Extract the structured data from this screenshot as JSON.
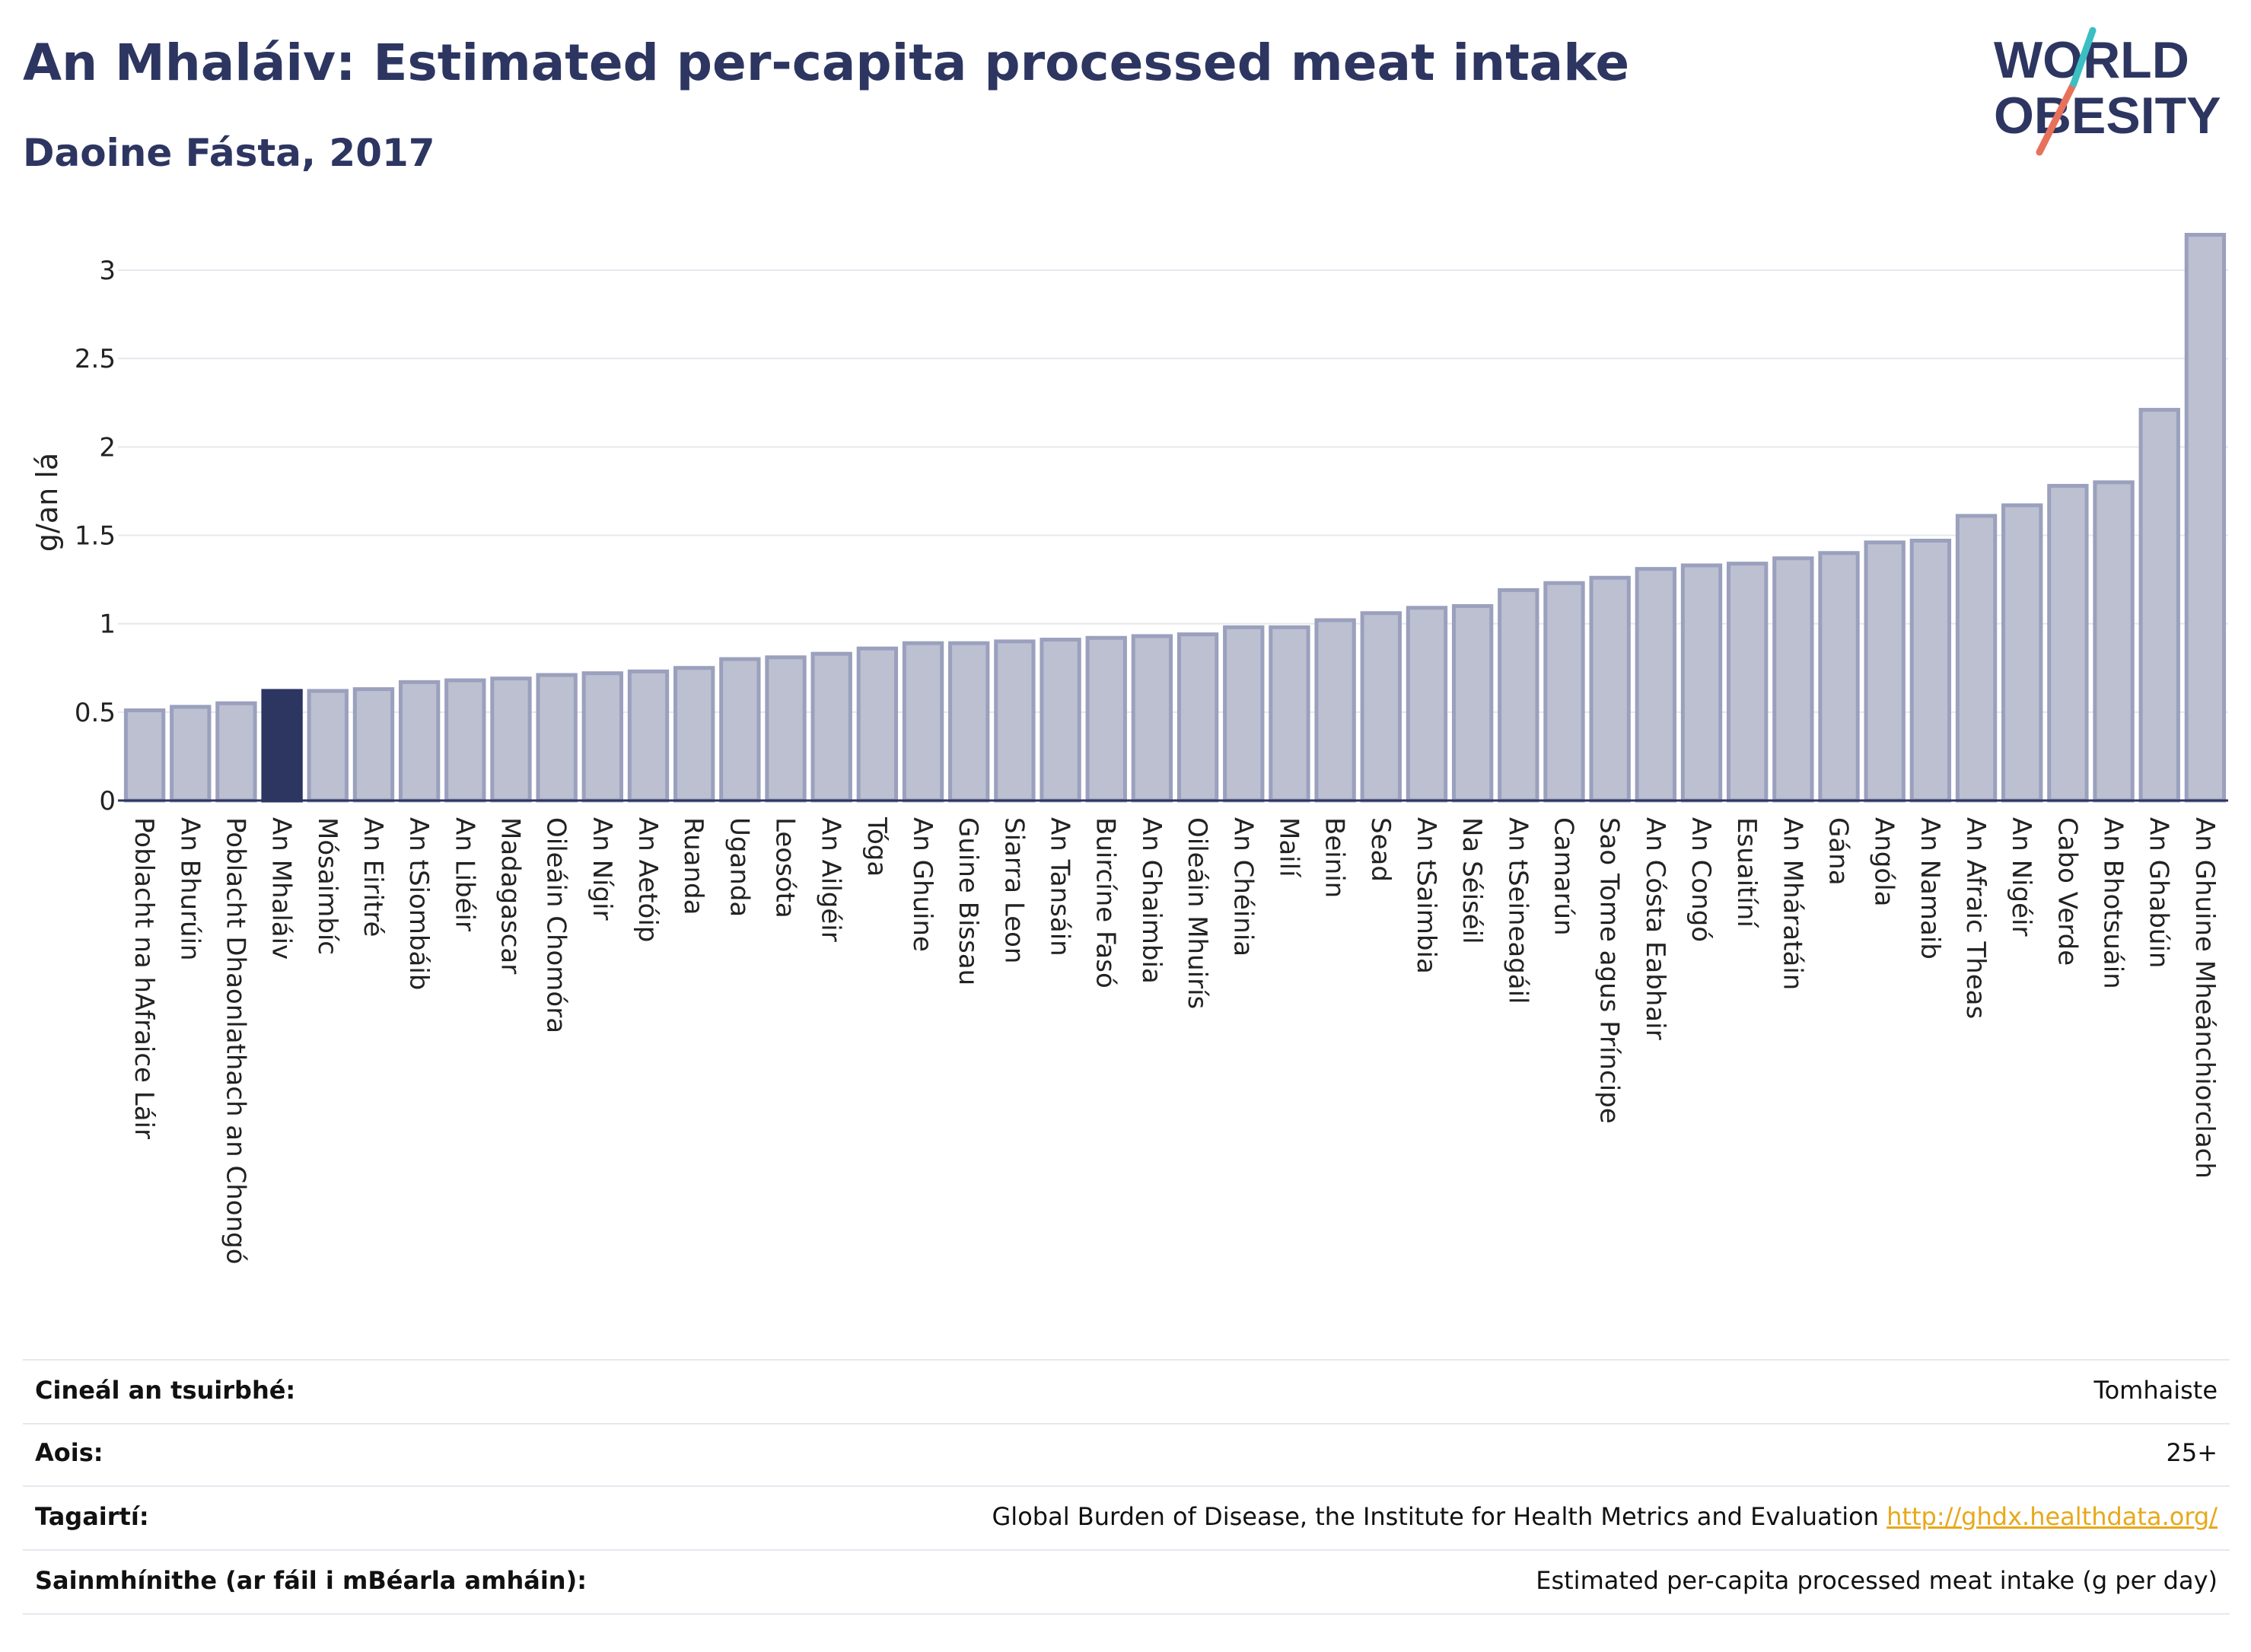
{
  "header": {
    "title": "An Mhaláiv: Estimated per-capita processed meat intake",
    "subtitle": "Daoine Fásta, 2017"
  },
  "logo": {
    "line1": "WORLD",
    "line2": "OBESITY"
  },
  "colors": {
    "highlight": "#2d3561",
    "bar": "#bcc0d0",
    "bar_stroke": "#9aa0bd",
    "title": "#2d3561",
    "link": "#e7a81b",
    "logo_teal": "#3bbfc2",
    "logo_red": "#e8715b"
  },
  "chart_data": {
    "type": "bar",
    "title": "An Mhaláiv: Estimated per-capita processed meat intake",
    "subtitle": "Daoine Fásta, 2017",
    "ylabel": "g/an lá",
    "xlabel": "",
    "ylim": [
      0,
      3.3
    ],
    "yticks": [
      0,
      0.5,
      1,
      1.5,
      2,
      2.5,
      3
    ],
    "ytick_labels": [
      "0",
      "0.5",
      "1",
      "1.5",
      "2",
      "2.5",
      "3"
    ],
    "grid": true,
    "highlight": "An Mhaláiv",
    "categories": [
      "Poblacht na hAfraice Láir",
      "An Bhurúin",
      "Poblacht Dhaonlathach an Chongó",
      "An Mhaláiv",
      "Mósaimbíc",
      "An Eiritré",
      "An tSiombáib",
      "An Libéir",
      "Madagascar",
      "Oileáin Chomóra",
      "An Nígir",
      "An Aetóip",
      "Ruanda",
      "Uganda",
      "Leosóta",
      "An Ailgéir",
      "Tóga",
      "An Ghuine",
      "Guine Bissau",
      "Siarra Leon",
      "An Tansáin",
      "Buircíne Fasó",
      "An Ghaimbia",
      "Oileáin Mhuirís",
      "An Chéinia",
      "Mailí",
      "Beinin",
      "Sead",
      "An tSaimbia",
      "Na Séiséil",
      "An tSeineagáil",
      "Camarún",
      "Sao Tome agus Príncipe",
      "An Cósta Eabhair",
      "An Congó",
      "Esuaitíní",
      "An Mháratáin",
      "Gána",
      "Angóla",
      "An Namaib",
      "An Afraic Theas",
      "An Nigéir",
      "Cabo Verde",
      "An Bhotsuáin",
      "An Ghabúin",
      "An Ghuine Mheánchiorclach"
    ],
    "values": [
      0.51,
      0.53,
      0.55,
      0.62,
      0.62,
      0.63,
      0.67,
      0.68,
      0.69,
      0.71,
      0.72,
      0.73,
      0.75,
      0.8,
      0.81,
      0.83,
      0.86,
      0.89,
      0.89,
      0.9,
      0.91,
      0.92,
      0.93,
      0.94,
      0.98,
      0.98,
      1.02,
      1.06,
      1.09,
      1.1,
      1.19,
      1.23,
      1.26,
      1.31,
      1.33,
      1.34,
      1.37,
      1.4,
      1.46,
      1.47,
      1.61,
      1.67,
      1.78,
      1.8,
      2.21,
      3.2
    ]
  },
  "meta": {
    "survey_type_label": "Cineál an tsuirbhé:",
    "survey_type_value": "Tomhaiste",
    "age_label": "Aois:",
    "age_value": "25+",
    "references_label": "Tagairtí:",
    "references_value": "Global Burden of Disease, the Institute for Health Metrics and Evaluation",
    "references_link": "http://ghdx.healthdata.org/",
    "definitions_label": "Sainmhínithe (ar fáil i mBéarla amháin):",
    "definitions_value": "Estimated per-capita processed meat intake (g per day)"
  }
}
